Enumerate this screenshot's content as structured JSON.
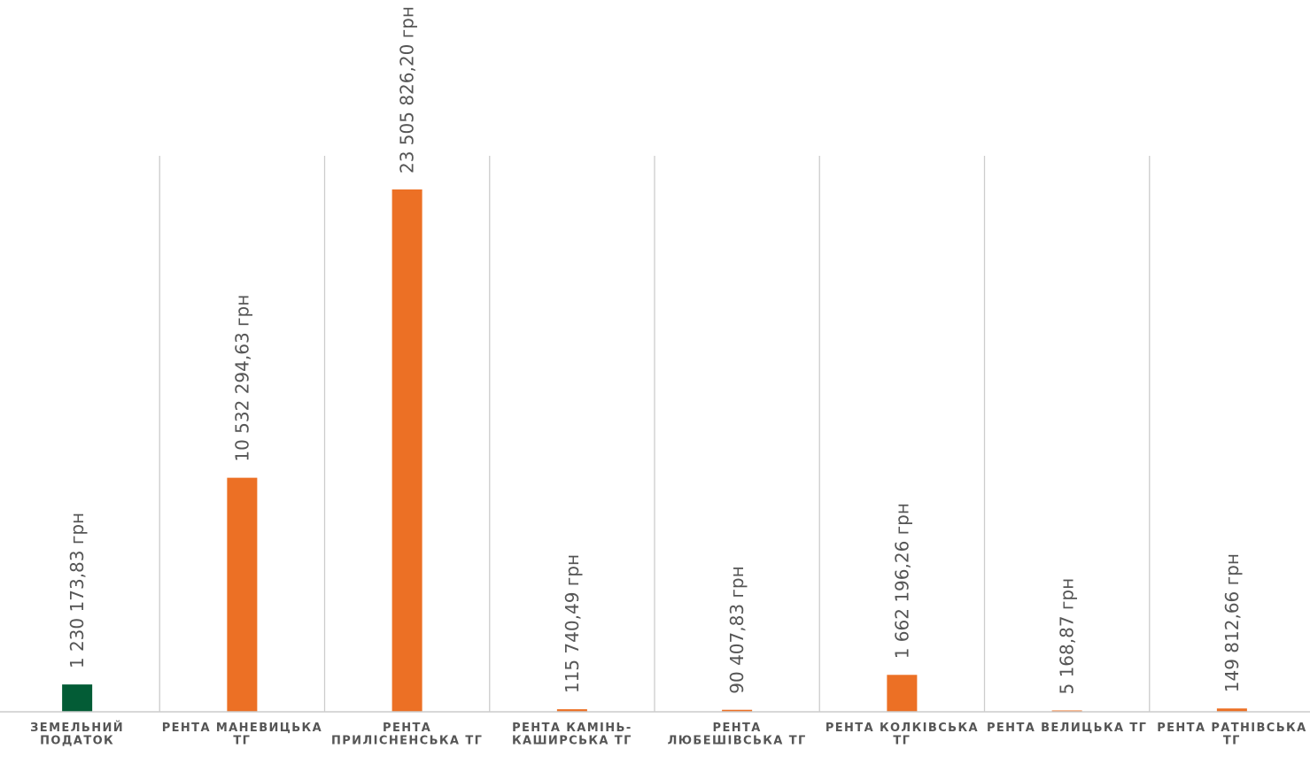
{
  "chart_data": {
    "type": "bar",
    "title": "",
    "xlabel": "",
    "ylabel": "",
    "ylim": [
      0,
      26600000
    ],
    "grid": "vertical-separators",
    "legend": "none",
    "categories": [
      [
        "ЗЕМЕЛЬНИЙ",
        "ПОДАТОК"
      ],
      [
        "РЕНТА МАНЕВИЦЬКА",
        "ТГ"
      ],
      [
        "РЕНТА",
        "ПРИЛІСНЕНСЬКА ТГ"
      ],
      [
        "РЕНТА КАМІНЬ-",
        "КАШИРСЬКА ТГ"
      ],
      [
        "РЕНТА",
        "ЛЮБЕШІВСЬКА ТГ"
      ],
      [
        "РЕНТА КОЛКІВСЬКА",
        "ТГ"
      ],
      [
        "РЕНТА ВЕЛИЦЬКА ТГ"
      ],
      [
        "РЕНТА РАТНІВСЬКА",
        "ТГ"
      ]
    ],
    "values": [
      1230173.83,
      10532294.63,
      23505826.2,
      115740.49,
      90407.83,
      1662196.26,
      5168.87,
      149812.66
    ],
    "value_labels": [
      "1 230 173,83 грн",
      "10 532 294,63 грн",
      "23 505 826,20 грн",
      "115 740,49 грн",
      "90 407,83 грн",
      "1 662 196,26 грн",
      "5 168,87 грн",
      "149 812,66 грн"
    ],
    "bar_colors": [
      "#035c36",
      "#ec7025",
      "#ec7025",
      "#ec7025",
      "#ec7025",
      "#ec7025",
      "#ec7025",
      "#ec7025"
    ],
    "axis_color": "#cccccc"
  }
}
